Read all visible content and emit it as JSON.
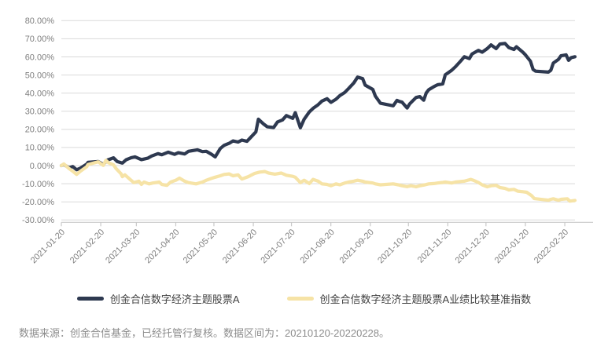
{
  "colors": {
    "fund": "#2e3950",
    "benchmark": "#f6e3a6",
    "grid": "#d9d9d9",
    "axis_line": "#c9c9c9",
    "axis_text": "#7f7f7f",
    "legend_text": "#404040",
    "footer_text": "#8c8c8c"
  },
  "legend": {
    "fund_label": "创金合信数字经济主题股票A",
    "benchmark_label": "创金合信数字经济主题股票A业绩比较基准指数"
  },
  "footer": {
    "source_note": "数据来源：创金合信基金，已经托管行复核。数据区间为：20210120-20220228。"
  },
  "chart_data": {
    "type": "line",
    "title": "",
    "xlabel": "",
    "ylabel": "",
    "ylim": [
      -30,
      80
    ],
    "ytick_step": 10,
    "ytick_suffix": "%",
    "grid": "horizontal",
    "legend_position": "bottom",
    "x_range": [
      "2021-01-20",
      "2022-02-28"
    ],
    "x_ticks": [
      "2021-01-20",
      "2021-02-20",
      "2021-03-20",
      "2021-04-20",
      "2021-05-20",
      "2021-06-20",
      "2021-07-20",
      "2021-08-20",
      "2021-09-20",
      "2021-10-20",
      "2021-11-20",
      "2021-12-20",
      "2022-01-20",
      "2022-02-20"
    ],
    "series": [
      {
        "name": "创金合信数字经济主题股票A",
        "color_key": "fund",
        "points": [
          [
            "2021-01-20",
            0
          ],
          [
            "2021-01-22",
            0.6
          ],
          [
            "2021-01-26",
            -1.2
          ],
          [
            "2021-01-29",
            -0.5
          ],
          [
            "2021-02-01",
            -2.3
          ],
          [
            "2021-02-04",
            -1.4
          ],
          [
            "2021-02-09",
            0.8
          ],
          [
            "2021-02-10",
            1.8
          ],
          [
            "2021-02-18",
            2.2
          ],
          [
            "2021-02-22",
            0.6
          ],
          [
            "2021-02-25",
            3.0
          ],
          [
            "2021-03-02",
            4.3
          ],
          [
            "2021-03-05",
            2.2
          ],
          [
            "2021-03-09",
            1.4
          ],
          [
            "2021-03-12",
            3.2
          ],
          [
            "2021-03-16",
            4.4
          ],
          [
            "2021-03-19",
            4.8
          ],
          [
            "2021-03-24",
            3.3
          ],
          [
            "2021-03-29",
            4.1
          ],
          [
            "2021-04-01",
            5.3
          ],
          [
            "2021-04-06",
            6.6
          ],
          [
            "2021-04-09",
            6.0
          ],
          [
            "2021-04-14",
            7.4
          ],
          [
            "2021-04-19",
            6.2
          ],
          [
            "2021-04-22",
            7.1
          ],
          [
            "2021-04-27",
            6.4
          ],
          [
            "2021-04-30",
            7.9
          ],
          [
            "2021-05-07",
            8.7
          ],
          [
            "2021-05-11",
            7.7
          ],
          [
            "2021-05-14",
            7.9
          ],
          [
            "2021-05-18",
            6.3
          ],
          [
            "2021-05-21",
            4.8
          ],
          [
            "2021-05-25",
            9.4
          ],
          [
            "2021-05-28",
            11.2
          ],
          [
            "2021-06-01",
            12.3
          ],
          [
            "2021-06-04",
            13.6
          ],
          [
            "2021-06-08",
            13.0
          ],
          [
            "2021-06-11",
            14.1
          ],
          [
            "2021-06-15",
            13.4
          ],
          [
            "2021-06-18",
            15.6
          ],
          [
            "2021-06-22",
            18.6
          ],
          [
            "2021-06-24",
            25.6
          ],
          [
            "2021-06-28",
            23.0
          ],
          [
            "2021-07-01",
            21.4
          ],
          [
            "2021-07-06",
            21.0
          ],
          [
            "2021-07-09",
            24.1
          ],
          [
            "2021-07-13",
            25.2
          ],
          [
            "2021-07-16",
            27.6
          ],
          [
            "2021-07-21",
            26.1
          ],
          [
            "2021-07-23",
            29.2
          ],
          [
            "2021-07-27",
            20.9
          ],
          [
            "2021-07-30",
            25.6
          ],
          [
            "2021-08-03",
            29.6
          ],
          [
            "2021-08-06",
            31.6
          ],
          [
            "2021-08-10",
            33.6
          ],
          [
            "2021-08-13",
            35.6
          ],
          [
            "2021-08-17",
            36.9
          ],
          [
            "2021-08-20",
            34.9
          ],
          [
            "2021-08-24",
            36.6
          ],
          [
            "2021-08-27",
            38.6
          ],
          [
            "2021-08-31",
            40.4
          ],
          [
            "2021-09-03",
            42.6
          ],
          [
            "2021-09-07",
            45.6
          ],
          [
            "2021-09-10",
            48.8
          ],
          [
            "2021-09-14",
            48.0
          ],
          [
            "2021-09-16",
            44.4
          ],
          [
            "2021-09-22",
            42.0
          ],
          [
            "2021-09-24",
            38.4
          ],
          [
            "2021-09-28",
            34.4
          ],
          [
            "2021-10-08",
            33.0
          ],
          [
            "2021-10-11",
            36.0
          ],
          [
            "2021-10-13",
            35.4
          ],
          [
            "2021-10-15",
            35.0
          ],
          [
            "2021-10-19",
            31.8
          ],
          [
            "2021-10-21",
            34.1
          ],
          [
            "2021-10-26",
            37.6
          ],
          [
            "2021-10-29",
            38.1
          ],
          [
            "2021-11-01",
            36.1
          ],
          [
            "2021-11-03",
            40.1
          ],
          [
            "2021-11-05",
            41.9
          ],
          [
            "2021-11-09",
            43.6
          ],
          [
            "2021-11-12",
            44.6
          ],
          [
            "2021-11-16",
            45.1
          ],
          [
            "2021-11-18",
            50.1
          ],
          [
            "2021-11-23",
            52.6
          ],
          [
            "2021-11-26",
            54.6
          ],
          [
            "2021-11-30",
            57.6
          ],
          [
            "2021-12-03",
            60.1
          ],
          [
            "2021-12-07",
            59.1
          ],
          [
            "2021-12-09",
            61.6
          ],
          [
            "2021-12-14",
            63.6
          ],
          [
            "2021-12-17",
            62.6
          ],
          [
            "2021-12-21",
            64.6
          ],
          [
            "2021-12-24",
            66.6
          ],
          [
            "2021-12-28",
            64.6
          ],
          [
            "2021-12-31",
            67.1
          ],
          [
            "2022-01-04",
            67.4
          ],
          [
            "2022-01-07",
            65.1
          ],
          [
            "2022-01-11",
            64.1
          ],
          [
            "2022-01-13",
            65.6
          ],
          [
            "2022-01-18",
            62.6
          ],
          [
            "2022-01-20",
            61.1
          ],
          [
            "2022-01-24",
            57.6
          ],
          [
            "2022-01-26",
            53.1
          ],
          [
            "2022-01-28",
            52.1
          ],
          [
            "2022-02-07",
            51.6
          ],
          [
            "2022-02-09",
            52.6
          ],
          [
            "2022-02-11",
            56.6
          ],
          [
            "2022-02-15",
            58.6
          ],
          [
            "2022-02-17",
            60.6
          ],
          [
            "2022-02-21",
            61.1
          ],
          [
            "2022-02-23",
            58.1
          ],
          [
            "2022-02-25",
            59.6
          ],
          [
            "2022-02-28",
            60.1
          ]
        ]
      },
      {
        "name": "创金合信数字经济主题股票A业绩比较基准指数",
        "color_key": "benchmark",
        "points": [
          [
            "2021-01-20",
            0
          ],
          [
            "2021-01-22",
            0.9
          ],
          [
            "2021-01-26",
            -1.6
          ],
          [
            "2021-01-29",
            -3.1
          ],
          [
            "2021-02-01",
            -4.9
          ],
          [
            "2021-02-04",
            -3.1
          ],
          [
            "2021-02-09",
            -0.6
          ],
          [
            "2021-02-10",
            0.6
          ],
          [
            "2021-02-18",
            2.1
          ],
          [
            "2021-02-22",
            0.1
          ],
          [
            "2021-02-24",
            2.9
          ],
          [
            "2021-02-26",
            1.6
          ],
          [
            "2021-03-02",
            0.4
          ],
          [
            "2021-03-04",
            -1.6
          ],
          [
            "2021-03-08",
            -4.6
          ],
          [
            "2021-03-09",
            -6.1
          ],
          [
            "2021-03-11",
            -5.1
          ],
          [
            "2021-03-15",
            -7.6
          ],
          [
            "2021-03-18",
            -9.4
          ],
          [
            "2021-03-22",
            -8.6
          ],
          [
            "2021-03-24",
            -10.4
          ],
          [
            "2021-03-26",
            -9.1
          ],
          [
            "2021-03-30",
            -10.1
          ],
          [
            "2021-04-02",
            -9.6
          ],
          [
            "2021-04-07",
            -9.1
          ],
          [
            "2021-04-09",
            -10.4
          ],
          [
            "2021-04-13",
            -10.9
          ],
          [
            "2021-04-16",
            -9.1
          ],
          [
            "2021-04-20",
            -8.1
          ],
          [
            "2021-04-23",
            -6.9
          ],
          [
            "2021-04-27",
            -8.6
          ],
          [
            "2021-04-30",
            -9.4
          ],
          [
            "2021-05-06",
            -10.1
          ],
          [
            "2021-05-11",
            -9.1
          ],
          [
            "2021-05-14",
            -8.1
          ],
          [
            "2021-05-18",
            -7.1
          ],
          [
            "2021-05-21",
            -6.4
          ],
          [
            "2021-05-25",
            -5.6
          ],
          [
            "2021-05-28",
            -4.9
          ],
          [
            "2021-06-01",
            -4.6
          ],
          [
            "2021-06-04",
            -5.6
          ],
          [
            "2021-06-08",
            -5.1
          ],
          [
            "2021-06-11",
            -7.4
          ],
          [
            "2021-06-16",
            -6.1
          ],
          [
            "2021-06-21",
            -4.3
          ],
          [
            "2021-06-25",
            -3.6
          ],
          [
            "2021-06-29",
            -3.3
          ],
          [
            "2021-07-02",
            -4.1
          ],
          [
            "2021-07-07",
            -4.7
          ],
          [
            "2021-07-12",
            -4.1
          ],
          [
            "2021-07-16",
            -5.3
          ],
          [
            "2021-07-21",
            -5.9
          ],
          [
            "2021-07-23",
            -6.4
          ],
          [
            "2021-07-27",
            -9.4
          ],
          [
            "2021-07-30",
            -8.1
          ],
          [
            "2021-08-03",
            -9.9
          ],
          [
            "2021-08-06",
            -7.6
          ],
          [
            "2021-08-10",
            -8.6
          ],
          [
            "2021-08-13",
            -10.1
          ],
          [
            "2021-08-17",
            -10.4
          ],
          [
            "2021-08-20",
            -11.1
          ],
          [
            "2021-08-24",
            -10.1
          ],
          [
            "2021-08-27",
            -10.6
          ],
          [
            "2021-08-31",
            -9.6
          ],
          [
            "2021-09-03",
            -9.1
          ],
          [
            "2021-09-07",
            -8.6
          ],
          [
            "2021-09-10",
            -8.1
          ],
          [
            "2021-09-14",
            -8.6
          ],
          [
            "2021-09-16",
            -9.1
          ],
          [
            "2021-09-22",
            -9.6
          ],
          [
            "2021-09-24",
            -10.1
          ],
          [
            "2021-09-28",
            -10.6
          ],
          [
            "2021-10-08",
            -10.1
          ],
          [
            "2021-10-12",
            -10.6
          ],
          [
            "2021-10-15",
            -11.1
          ],
          [
            "2021-10-19",
            -11.6
          ],
          [
            "2021-10-22",
            -11.1
          ],
          [
            "2021-10-26",
            -11.7
          ],
          [
            "2021-10-29",
            -11.1
          ],
          [
            "2021-11-02",
            -10.6
          ],
          [
            "2021-11-05",
            -10.1
          ],
          [
            "2021-11-09",
            -9.9
          ],
          [
            "2021-11-12",
            -9.6
          ],
          [
            "2021-11-16",
            -9.3
          ],
          [
            "2021-11-18",
            -9.1
          ],
          [
            "2021-11-23",
            -9.6
          ],
          [
            "2021-11-26",
            -9.1
          ],
          [
            "2021-11-30",
            -8.8
          ],
          [
            "2021-12-03",
            -8.6
          ],
          [
            "2021-12-08",
            -7.6
          ],
          [
            "2021-12-10",
            -8.1
          ],
          [
            "2021-12-14",
            -9.3
          ],
          [
            "2021-12-17",
            -10.6
          ],
          [
            "2021-12-21",
            -11.7
          ],
          [
            "2021-12-24",
            -11.1
          ],
          [
            "2021-12-28",
            -10.9
          ],
          [
            "2021-12-31",
            -12.1
          ],
          [
            "2022-01-04",
            -12.6
          ],
          [
            "2022-01-07",
            -13.4
          ],
          [
            "2022-01-11",
            -13.1
          ],
          [
            "2022-01-14",
            -14.1
          ],
          [
            "2022-01-18",
            -14.4
          ],
          [
            "2022-01-21",
            -14.7
          ],
          [
            "2022-01-25",
            -16.6
          ],
          [
            "2022-01-27",
            -18.2
          ],
          [
            "2022-02-07",
            -19.1
          ],
          [
            "2022-02-09",
            -18.6
          ],
          [
            "2022-02-11",
            -18.3
          ],
          [
            "2022-02-15",
            -19.1
          ],
          [
            "2022-02-17",
            -18.6
          ],
          [
            "2022-02-22",
            -18.3
          ],
          [
            "2022-02-24",
            -19.6
          ],
          [
            "2022-02-28",
            -19.2
          ]
        ]
      }
    ]
  }
}
